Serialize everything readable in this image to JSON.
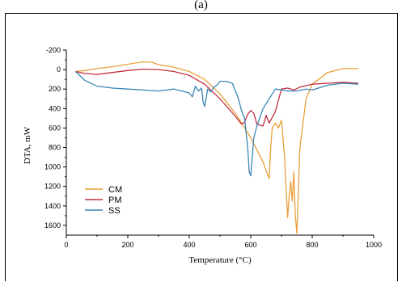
{
  "figure": {
    "caption": "(a)"
  },
  "chart_data": {
    "type": "line",
    "title": "",
    "xlabel": "Temperature (°C)",
    "ylabel": "DTA, mW",
    "xlim": [
      0,
      1000
    ],
    "ylim": [
      -200,
      1700
    ],
    "y_inverted": true,
    "xticks": [
      0,
      200,
      400,
      600,
      800,
      1000
    ],
    "yticks": [
      -200,
      0,
      200,
      400,
      600,
      800,
      1000,
      1200,
      1400,
      1600
    ],
    "grid": false,
    "legend": {
      "position": "bottom-left"
    },
    "series": [
      {
        "name": "CM",
        "color": "#e8a03a",
        "x": [
          30,
          60,
          100,
          150,
          200,
          250,
          280,
          300,
          350,
          400,
          450,
          500,
          550,
          600,
          640,
          660,
          665,
          670,
          680,
          690,
          700,
          710,
          720,
          725,
          730,
          735,
          740,
          745,
          750,
          760,
          780,
          800,
          850,
          900,
          950
        ],
        "y": [
          20,
          10,
          -10,
          -30,
          -55,
          -80,
          -75,
          -50,
          -25,
          20,
          100,
          250,
          450,
          700,
          950,
          1120,
          800,
          600,
          550,
          600,
          520,
          900,
          1520,
          1300,
          1150,
          1350,
          1050,
          1500,
          1680,
          800,
          300,
          150,
          30,
          -10,
          -10
        ]
      },
      {
        "name": "PM",
        "color": "#c03040",
        "x": [
          30,
          60,
          100,
          150,
          200,
          250,
          300,
          350,
          400,
          450,
          500,
          550,
          570,
          580,
          590,
          600,
          610,
          620,
          640,
          650,
          660,
          680,
          700,
          720,
          740,
          760,
          800,
          850,
          900,
          950
        ],
        "y": [
          20,
          40,
          50,
          30,
          10,
          -5,
          0,
          20,
          60,
          150,
          300,
          480,
          560,
          540,
          460,
          420,
          450,
          560,
          580,
          470,
          550,
          430,
          200,
          190,
          210,
          180,
          150,
          140,
          130,
          140
        ]
      },
      {
        "name": "SS",
        "color": "#3a86b6",
        "x": [
          30,
          60,
          100,
          150,
          200,
          250,
          300,
          350,
          400,
          410,
          420,
          430,
          440,
          445,
          450,
          460,
          470,
          480,
          490,
          500,
          520,
          540,
          560,
          570,
          580,
          590,
          595,
          600,
          610,
          620,
          640,
          660,
          680,
          700,
          720,
          750,
          780,
          800,
          850,
          900,
          950
        ],
        "y": [
          20,
          110,
          170,
          190,
          200,
          210,
          220,
          200,
          240,
          280,
          170,
          220,
          190,
          330,
          380,
          200,
          230,
          180,
          160,
          120,
          120,
          140,
          300,
          420,
          500,
          800,
          1050,
          1090,
          700,
          580,
          400,
          300,
          200,
          210,
          220,
          220,
          200,
          210,
          160,
          140,
          150
        ]
      }
    ]
  }
}
